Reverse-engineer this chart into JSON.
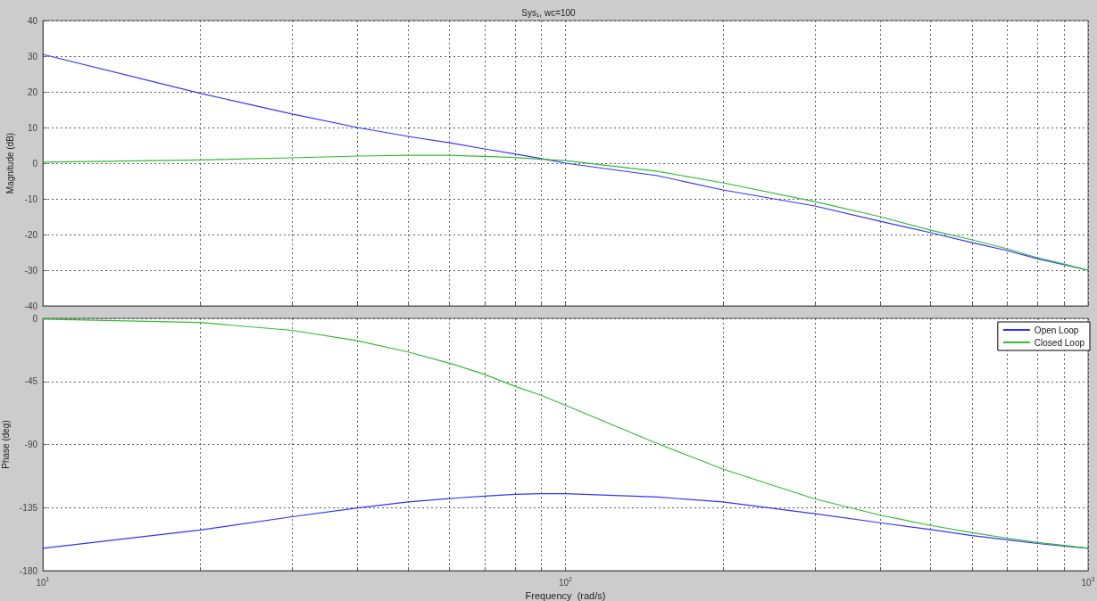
{
  "chart_data": [
    {
      "type": "line",
      "title": "Sys₁, wc=100",
      "ylabel": "Magnitude (dB)",
      "x": [
        10,
        20,
        30,
        40,
        50,
        60,
        70,
        80,
        90,
        100,
        150,
        200,
        300,
        400,
        500,
        600,
        700,
        800,
        900,
        1000
      ],
      "series": [
        {
          "color": "#3333ff",
          "values": [
            30.5,
            19.6,
            13.8,
            10,
            7.5,
            5.7,
            4,
            2.6,
            1.3,
            0,
            -3.5,
            -7.5,
            -12,
            -16.3,
            -19.5,
            -22.3,
            -24.5,
            -26.8,
            -28.5,
            -30
          ]
        },
        {
          "color": "#33bb33",
          "values": [
            0.3,
            0.9,
            1.5,
            2,
            2.2,
            2.2,
            1.9,
            1.6,
            1.1,
            0.7,
            -2.3,
            -5.5,
            -10.8,
            -15,
            -18.8,
            -21.5,
            -24,
            -26.5,
            -28.3,
            -30
          ]
        }
      ],
      "log": "x",
      "xlim": [
        10,
        1000
      ],
      "xticks": [
        {
          "value": 10,
          "label": null
        },
        {
          "value": 20,
          "label": null
        },
        {
          "value": 30,
          "label": null
        },
        {
          "value": 40,
          "label": null
        },
        {
          "value": 50,
          "label": null
        },
        {
          "value": 60,
          "label": null
        },
        {
          "value": 70,
          "label": null
        },
        {
          "value": 80,
          "label": null
        },
        {
          "value": 90,
          "label": null
        },
        {
          "value": 100,
          "label": null
        },
        {
          "value": 200,
          "label": null
        },
        {
          "value": 300,
          "label": null
        },
        {
          "value": 400,
          "label": null
        },
        {
          "value": 500,
          "label": null
        },
        {
          "value": 600,
          "label": null
        },
        {
          "value": 700,
          "label": null
        },
        {
          "value": 800,
          "label": null
        },
        {
          "value": 900,
          "label": null
        },
        {
          "value": 1000,
          "label": null
        }
      ],
      "ylim": [
        -40,
        40
      ],
      "yticks": [
        -40,
        -30,
        -20,
        -10,
        0,
        10,
        20,
        30,
        40
      ],
      "tick_labels": "y",
      "grid": true,
      "marker": "none",
      "line_style": "solid",
      "legend": false
    },
    {
      "type": "line",
      "ylabel": "Phase (deg)",
      "xlabel": "Frequency  (rad/s)",
      "x": [
        10,
        20,
        30,
        40,
        50,
        60,
        70,
        80,
        90,
        100,
        150,
        200,
        300,
        400,
        500,
        600,
        700,
        800,
        900,
        1000
      ],
      "series": [
        {
          "name": "Open Loop",
          "color": "#3333ff",
          "values": [
            -164,
            -151,
            -141.5,
            -135.2,
            -131,
            -128.5,
            -126.8,
            -125.6,
            -125,
            -125,
            -127.5,
            -131,
            -139.4,
            -145.8,
            -150.7,
            -155,
            -158,
            -160.6,
            -162.4,
            -164
          ]
        },
        {
          "name": "Closed Loop",
          "color": "#33bb33",
          "values": [
            -0.5,
            -3,
            -8.6,
            -16,
            -24,
            -32,
            -40,
            -48.4,
            -55,
            -62,
            -89.4,
            -107.5,
            -128.8,
            -140.4,
            -147.7,
            -152.9,
            -156.8,
            -159.9,
            -162,
            -164
          ]
        }
      ],
      "log": "x",
      "xlim": [
        10,
        1000
      ],
      "xticks": [
        {
          "value": 10,
          "label": "10$^{1}$"
        },
        {
          "value": 20,
          "label": null
        },
        {
          "value": 30,
          "label": null
        },
        {
          "value": 40,
          "label": null
        },
        {
          "value": 50,
          "label": null
        },
        {
          "value": 60,
          "label": null
        },
        {
          "value": 70,
          "label": null
        },
        {
          "value": 80,
          "label": null
        },
        {
          "value": 90,
          "label": null
        },
        {
          "value": 100,
          "label": "10$^{2}$"
        },
        {
          "value": 200,
          "label": null
        },
        {
          "value": 300,
          "label": null
        },
        {
          "value": 400,
          "label": null
        },
        {
          "value": 500,
          "label": null
        },
        {
          "value": 600,
          "label": null
        },
        {
          "value": 700,
          "label": null
        },
        {
          "value": 800,
          "label": null
        },
        {
          "value": 900,
          "label": null
        },
        {
          "value": 1000,
          "label": "10$^{3}$"
        }
      ],
      "ylim": [
        -180,
        0
      ],
      "yticks": [
        -180,
        -135,
        -90,
        -45,
        0
      ],
      "grid": true,
      "marker": "none",
      "line_style": "solid",
      "legend": "top right"
    }
  ]
}
